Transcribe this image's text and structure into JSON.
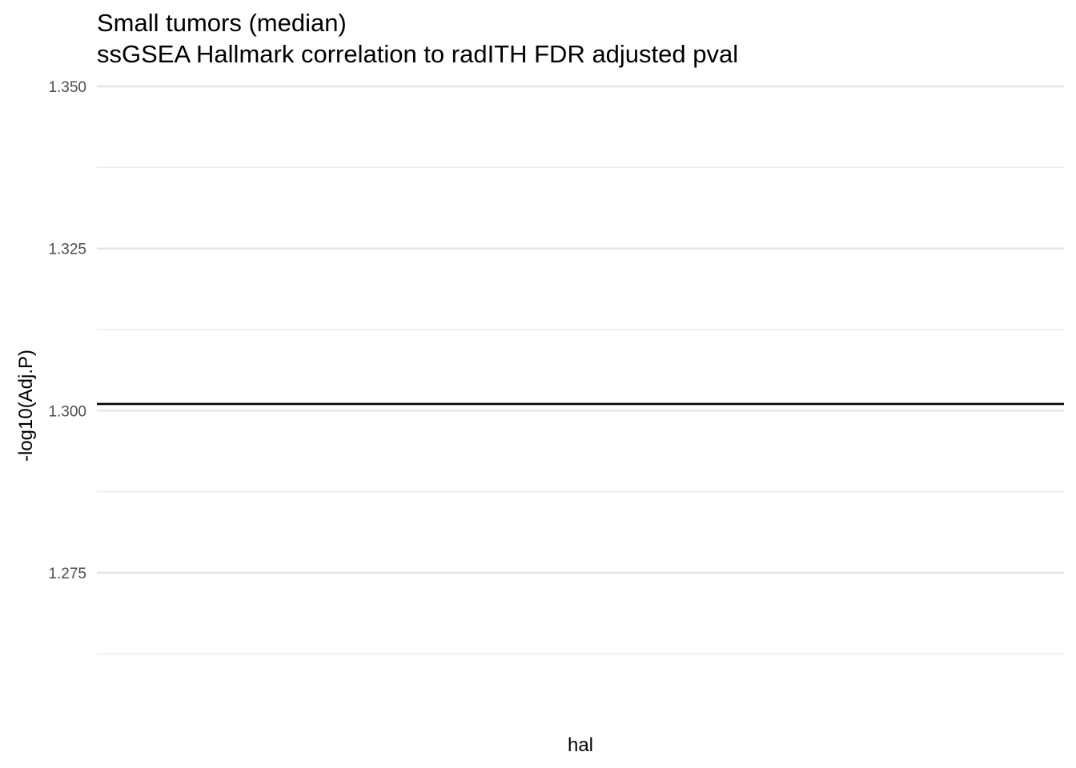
{
  "chart_data": {
    "type": "line",
    "title": "Small tumors (median)",
    "subtitle": "ssGSEA Hallmark correlation to radITH FDR adjusted pval",
    "xlabel": "hal",
    "ylabel": "-log10(Adj.P)",
    "ylim": [
      1.26,
      1.35
    ],
    "y_ticks": [
      1.275,
      1.3,
      1.325,
      1.35
    ],
    "y_tick_labels": [
      "1.275",
      "1.300",
      "1.325",
      "1.350"
    ],
    "y_minor_ticks": [
      1.2625,
      1.2875,
      1.3125,
      1.3375
    ],
    "grid": true,
    "reference_lines": [
      {
        "orientation": "horizontal",
        "y": 1.30103,
        "color": "#000000"
      }
    ],
    "series": []
  }
}
